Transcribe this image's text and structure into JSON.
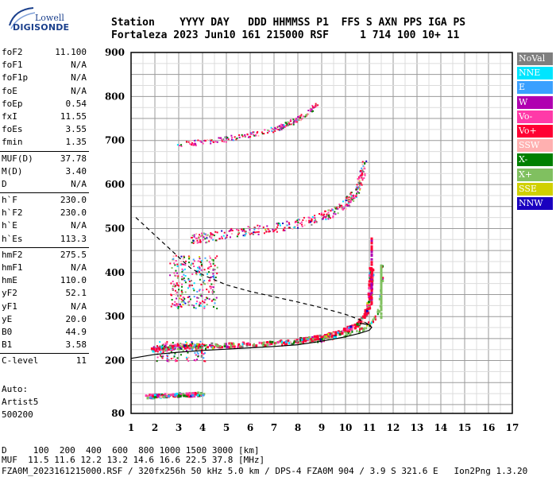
{
  "logo": {
    "small": "Lowell",
    "big": "DIGISONDE"
  },
  "header": {
    "line1": "Station    YYYY DAY   DDD HHMMSS P1  FFS S AXN PPS IGA PS",
    "line2": "Fortaleza 2023 Jun10 161 215000 RSF     1 714 100 10+ 11"
  },
  "params": {
    "group1": [
      {
        "label": "foF2",
        "value": "11.100"
      },
      {
        "label": "foF1",
        "value": "N/A"
      },
      {
        "label": "foF1p",
        "value": "N/A"
      },
      {
        "label": "foE",
        "value": "N/A"
      },
      {
        "label": "foEp",
        "value": "0.54"
      },
      {
        "label": "fxI",
        "value": "11.55"
      },
      {
        "label": "foEs",
        "value": "3.55"
      },
      {
        "label": "fmin",
        "value": "1.35"
      }
    ],
    "group2": [
      {
        "label": "MUF(D)",
        "value": "37.78"
      },
      {
        "label": "M(D)",
        "value": "3.40"
      },
      {
        "label": "D",
        "value": "N/A"
      }
    ],
    "group3": [
      {
        "label": "h`F",
        "value": "230.0"
      },
      {
        "label": "h`F2",
        "value": "230.0"
      },
      {
        "label": "h`E",
        "value": "N/A"
      },
      {
        "label": "h`Es",
        "value": "113.3"
      }
    ],
    "group4": [
      {
        "label": "hmF2",
        "value": "275.5"
      },
      {
        "label": "hmF1",
        "value": "N/A"
      },
      {
        "label": "hmE",
        "value": "110.0"
      },
      {
        "label": "yF2",
        "value": "52.1"
      },
      {
        "label": "yF1",
        "value": "N/A"
      },
      {
        "label": "yE",
        "value": "20.0"
      },
      {
        "label": "B0",
        "value": "44.9"
      },
      {
        "label": "B1",
        "value": "3.58"
      }
    ],
    "group5": [
      {
        "label": "C-level",
        "value": "11"
      }
    ]
  },
  "auto": {
    "line1": "Auto:",
    "line2": "Artist5",
    "line3": "500200"
  },
  "bottom": {
    "line1": "D     100  200  400  600  800 1000 1500 3000 [km]",
    "line2": "MUF  11.5 11.6 12.2 13.2 14.6 16.6 22.5 37.8 [MHz]",
    "line3": "FZA0M_2023161215000.RSF / 320fx256h 50 kHz 5.0 km / DPS-4 FZA0M 904 / 3.9 S 321.6 E   Ion2Png 1.3.20"
  },
  "legend": [
    {
      "label": "NoVal",
      "bg": "#7f7f7f",
      "fg": "#ffffff"
    },
    {
      "label": "NNE",
      "bg": "#00e5ff",
      "fg": "#ffffff"
    },
    {
      "label": "E",
      "bg": "#3aa0ff",
      "fg": "#ffffff"
    },
    {
      "label": "W",
      "bg": "#b000b0",
      "fg": "#ffffff"
    },
    {
      "label": "Vo-",
      "bg": "#ff3aa8",
      "fg": "#ffffff"
    },
    {
      "label": "Vo+",
      "bg": "#ff0033",
      "fg": "#ffffff"
    },
    {
      "label": "SSW",
      "bg": "#ffb0b0",
      "fg": "#ffffff"
    },
    {
      "label": "X-",
      "bg": "#008000",
      "fg": "#ffffff"
    },
    {
      "label": "X+",
      "bg": "#80c060",
      "fg": "#ffffff"
    },
    {
      "label": "SSE",
      "bg": "#d0d000",
      "fg": "#ffffff"
    },
    {
      "label": "NNW",
      "bg": "#1a00c0",
      "fg": "#ffffff"
    }
  ],
  "chart_data": {
    "type": "scatter",
    "title": "",
    "xlabel": "",
    "ylabel": "",
    "xlim": [
      1,
      17
    ],
    "ylim": [
      80,
      900
    ],
    "x_ticks": [
      1,
      2,
      3,
      4,
      5,
      6,
      7,
      8,
      9,
      10,
      11,
      12,
      13,
      14,
      15,
      16,
      17
    ],
    "y_ticks": [
      80,
      200,
      300,
      400,
      500,
      600,
      700,
      800,
      900
    ],
    "grid": true,
    "ordinary_trace": [
      [
        1.9,
        225
      ],
      [
        2.5,
        229
      ],
      [
        3.0,
        231
      ],
      [
        3.5,
        232
      ],
      [
        4.0,
        233
      ],
      [
        5.0,
        235
      ],
      [
        6.0,
        237
      ],
      [
        7.0,
        240
      ],
      [
        8.0,
        245
      ],
      [
        8.5,
        248
      ],
      [
        9.0,
        253
      ],
      [
        9.5,
        260
      ],
      [
        10.0,
        268
      ],
      [
        10.4,
        278
      ],
      [
        10.7,
        292
      ],
      [
        10.9,
        310
      ],
      [
        11.0,
        330
      ],
      [
        11.05,
        355
      ],
      [
        11.08,
        380
      ],
      [
        11.1,
        410
      ]
    ],
    "extraordinary_trace": [
      [
        2.3,
        226
      ],
      [
        3.0,
        229
      ],
      [
        4.0,
        231
      ],
      [
        5.0,
        233
      ],
      [
        6.0,
        235
      ],
      [
        7.0,
        238
      ],
      [
        8.0,
        242
      ],
      [
        9.0,
        248
      ],
      [
        9.8,
        256
      ],
      [
        10.5,
        266
      ],
      [
        11.0,
        280
      ],
      [
        11.3,
        300
      ],
      [
        11.45,
        330
      ],
      [
        11.52,
        370
      ],
      [
        11.55,
        420
      ]
    ],
    "second_hop_trace": [
      [
        3.5,
        475
      ],
      [
        4.5,
        482
      ],
      [
        5.5,
        490
      ],
      [
        6.5,
        498
      ],
      [
        7.5,
        506
      ],
      [
        8.5,
        518
      ],
      [
        9.2,
        530
      ],
      [
        9.8,
        545
      ],
      [
        10.2,
        565
      ],
      [
        10.5,
        590
      ],
      [
        10.7,
        620
      ],
      [
        10.8,
        650
      ]
    ],
    "third_hop_trace": [
      [
        3.0,
        690
      ],
      [
        4.0,
        696
      ],
      [
        5.0,
        703
      ],
      [
        6.0,
        712
      ],
      [
        7.0,
        725
      ],
      [
        7.5,
        735
      ],
      [
        8.0,
        748
      ],
      [
        8.5,
        765
      ],
      [
        8.8,
        782
      ]
    ],
    "sporadic_e_trace": [
      [
        1.7,
        118
      ],
      [
        2.0,
        119
      ],
      [
        2.5,
        120
      ],
      [
        3.0,
        121
      ],
      [
        3.5,
        122
      ],
      [
        4.0,
        124
      ]
    ],
    "profile_solid": [
      [
        1.0,
        205
      ],
      [
        2.0,
        214
      ],
      [
        3.0,
        219
      ],
      [
        4.0,
        223
      ],
      [
        5.0,
        226
      ],
      [
        6.0,
        229
      ],
      [
        7.0,
        232
      ],
      [
        8.0,
        236
      ],
      [
        9.0,
        244
      ],
      [
        10.0,
        254
      ],
      [
        10.6,
        262
      ],
      [
        11.0,
        269
      ],
      [
        11.1,
        275.5
      ],
      [
        11.0,
        281
      ],
      [
        10.6,
        285
      ]
    ],
    "profile_dashed": [
      [
        1.2,
        525
      ],
      [
        1.6,
        505
      ],
      [
        2.0,
        485
      ],
      [
        2.5,
        460
      ],
      [
        3.0,
        435
      ],
      [
        3.5,
        410
      ],
      [
        4.0,
        395
      ],
      [
        5.0,
        372
      ],
      [
        6.0,
        357
      ],
      [
        7.0,
        345
      ],
      [
        8.0,
        333
      ],
      [
        9.0,
        320
      ],
      [
        10.0,
        305
      ],
      [
        10.5,
        295
      ],
      [
        11.0,
        282
      ]
    ]
  }
}
